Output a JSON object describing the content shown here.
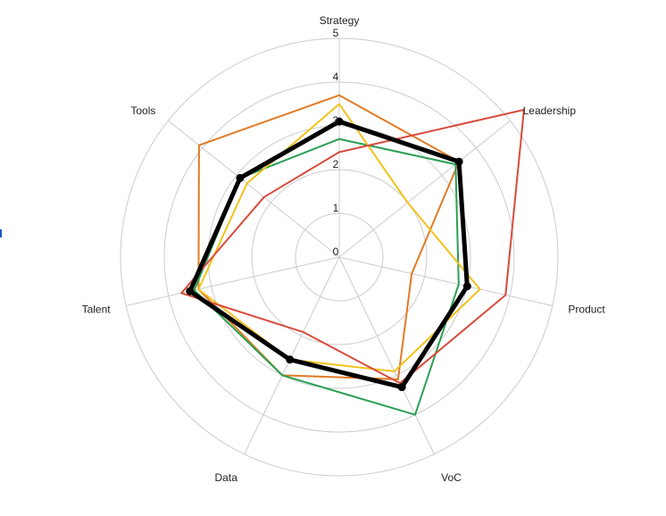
{
  "chart_data": {
    "type": "radar",
    "axes": [
      "Strategy",
      "Leadership",
      "Product",
      "VoC",
      "Data",
      "Talent",
      "Tools"
    ],
    "rmax": 5,
    "ticks": [
      "0",
      "1",
      "2",
      "3",
      "4",
      "5"
    ],
    "grid": true,
    "legend": "none",
    "series": [
      {
        "color": "#e07b24",
        "width": 2,
        "values": [
          3.7,
          3.5,
          1.7,
          3.1,
          3.0,
          3.3,
          4.1
        ],
        "markers": false
      },
      {
        "color": "#2c9f55",
        "width": 2,
        "values": [
          2.7,
          3.4,
          2.8,
          4.0,
          3.0,
          3.4,
          2.9
        ],
        "markers": false
      },
      {
        "color": "#f2c21b",
        "width": 2,
        "values": [
          3.5,
          2.0,
          3.3,
          2.9,
          2.6,
          3.3,
          2.7
        ],
        "markers": false
      },
      {
        "color": "#d84b3c",
        "width": 2,
        "values": [
          2.4,
          5.4,
          3.9,
          3.2,
          1.9,
          3.7,
          2.2
        ],
        "markers": false
      },
      {
        "color": "#000000",
        "width": 5,
        "values": [
          3.1,
          3.5,
          3.0,
          3.3,
          2.6,
          3.5,
          2.9
        ],
        "markers": true
      }
    ]
  }
}
